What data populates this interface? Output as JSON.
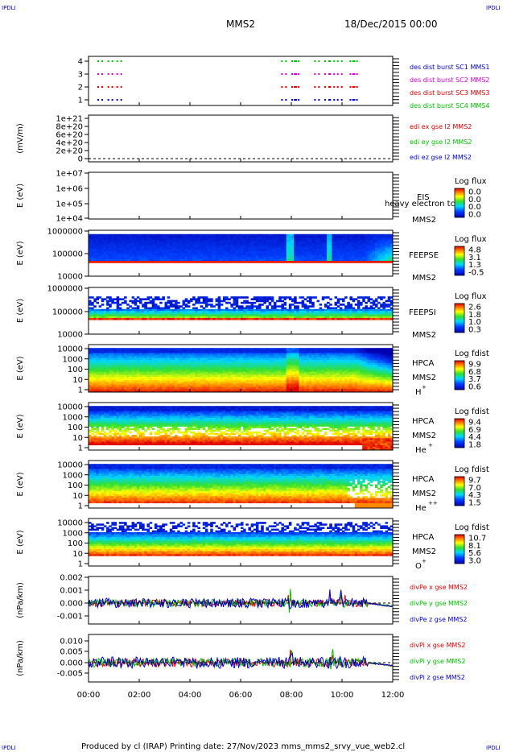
{
  "header": {
    "corner_tl": "IPDLI",
    "corner_tr": "IPDLI",
    "corner_bl": "IPDLI",
    "corner_br": "IPDLI",
    "mission": "MMS2",
    "date": "18/Dec/2015 00:00"
  },
  "footer": {
    "text": "Produced by cl (IRAP)   Printing date: 27/Nov/2023   mms_mms2_srvy_vue_web2.cl"
  },
  "colors": {
    "red": "#e00000",
    "green": "#00c000",
    "blue": "#0000d0",
    "magenta": "#d000d0",
    "text": "#000000"
  },
  "chart_data": [
    {
      "type": "scatter",
      "panel": "burst",
      "yticks": [
        "4",
        "3",
        "2",
        "1"
      ],
      "ylim": [
        0.5,
        4.5
      ],
      "series": [
        {
          "name": "des dist burst SC1 MMS1",
          "color": "#0000d0",
          "y": 1
        },
        {
          "name": "des dist burst SC2 MMS2",
          "color": "#d000d0",
          "y": 3
        },
        {
          "name": "des dist burst SC3 MMS3",
          "color": "#e00000",
          "y": 2
        },
        {
          "name": "des dist burst SC4 MMS4",
          "color": "#00c000",
          "y": 4
        }
      ],
      "burst_times_hours": [
        0.35,
        0.75,
        1.1,
        7.6,
        8.0,
        8.1,
        8.9,
        9.3,
        9.5,
        9.8,
        10.3,
        10.4
      ]
    },
    {
      "type": "line",
      "panel": "edi_e",
      "ylabel": "(mV/m)",
      "yticks": [
        "1e+21",
        "8e+20",
        "6e+20",
        "4e+20",
        "2e+20",
        "0"
      ],
      "ylim": [
        0,
        1e+21
      ],
      "series": [
        {
          "name": "edi ex gse l2 MMS2",
          "color": "#e00000"
        },
        {
          "name": "edi ey gse l2 MMS2",
          "color": "#00c000"
        },
        {
          "name": "edi ez gse l2 MMS2",
          "color": "#0000d0"
        }
      ]
    },
    {
      "type": "heatmap",
      "panel": "eis",
      "ylabel": "E (eV)",
      "yticks": [
        "1e+07",
        "1e+06",
        "1e+05",
        "1e+04"
      ],
      "yscale": "log",
      "labels": [
        "EIS",
        "MMS2"
      ],
      "overlay_text": "heavy electron tc",
      "colorbar": {
        "title": "Log flux",
        "ticks": [
          "0.0",
          "0.0",
          "0.0",
          "0.0"
        ]
      }
    },
    {
      "type": "heatmap",
      "panel": "feepse",
      "ylabel": "E (eV)",
      "yticks": [
        "1000000",
        "100000",
        "10000"
      ],
      "yscale": "log",
      "labels": [
        "FEEPSE",
        "MMS2"
      ],
      "colorbar": {
        "title": "Log flux",
        "ticks": [
          "4.8",
          "3.1",
          "1.3",
          "-0.5"
        ]
      }
    },
    {
      "type": "heatmap",
      "panel": "feepsi",
      "ylabel": "E (eV)",
      "yticks": [
        "1000000",
        "100000",
        "10000"
      ],
      "yscale": "log",
      "labels": [
        "FEEPSI",
        "MMS2"
      ],
      "colorbar": {
        "title": "Log flux",
        "ticks": [
          "2.6",
          "1.8",
          "1.0",
          "0.3"
        ]
      }
    },
    {
      "type": "heatmap",
      "panel": "hpca_h",
      "ylabel": "E (eV)",
      "yticks": [
        "10000",
        "1000",
        "100",
        "10",
        "1"
      ],
      "yscale": "log",
      "labels": [
        "HPCA",
        "MMS2"
      ],
      "species": "H",
      "species_sup": "+",
      "colorbar": {
        "title": "Log fdist",
        "ticks": [
          "9.9",
          "6.8",
          "3.7",
          "0.6"
        ]
      }
    },
    {
      "type": "heatmap",
      "panel": "hpca_he",
      "ylabel": "E (eV)",
      "yticks": [
        "10000",
        "1000",
        "100",
        "10",
        "1"
      ],
      "yscale": "log",
      "labels": [
        "HPCA",
        "MMS2"
      ],
      "species": "He",
      "species_sup": "+",
      "colorbar": {
        "title": "Log fdist",
        "ticks": [
          "9.4",
          "6.9",
          "4.4",
          "1.8"
        ]
      }
    },
    {
      "type": "heatmap",
      "panel": "hpca_hepp",
      "ylabel": "E (eV)",
      "yticks": [
        "10000",
        "1000",
        "100",
        "10",
        "1"
      ],
      "yscale": "log",
      "labels": [
        "HPCA",
        "MMS2"
      ],
      "species": "He",
      "species_sup": "++",
      "colorbar": {
        "title": "Log fdist",
        "ticks": [
          "9.7",
          "7.0",
          "4.3",
          "1.5"
        ]
      }
    },
    {
      "type": "heatmap",
      "panel": "hpca_o",
      "ylabel": "E (eV)",
      "yticks": [
        "10000",
        "1000",
        "100",
        "10",
        "1"
      ],
      "yscale": "log",
      "labels": [
        "HPCA",
        "MMS2"
      ],
      "species": "O",
      "species_sup": "+",
      "colorbar": {
        "title": "Log fdist",
        "ticks": [
          "10.7",
          "8.1",
          "5.6",
          "3.0"
        ]
      }
    },
    {
      "type": "line",
      "panel": "divpe",
      "ylabel": "(nPa/km)",
      "yticks": [
        "0.002",
        "0.001",
        "0.000",
        "-0.001"
      ],
      "ylim": [
        -0.0015,
        0.0022
      ],
      "series": [
        {
          "name": "divPe x gse MMS2",
          "color": "#e00000"
        },
        {
          "name": "divPe y gse MMS2",
          "color": "#00c000"
        },
        {
          "name": "divPe z gse MMS2",
          "color": "#0000d0"
        }
      ]
    },
    {
      "type": "line",
      "panel": "divpi",
      "ylabel": "(nPa/km)",
      "yticks": [
        "0.010",
        "0.005",
        "0.000",
        "-0.005"
      ],
      "ylim": [
        -0.0075,
        0.012
      ],
      "series": [
        {
          "name": "divPi x gse MMS2",
          "color": "#e00000"
        },
        {
          "name": "divPi y gse MMS2",
          "color": "#00c000"
        },
        {
          "name": "divPi z gse MMS2",
          "color": "#0000d0"
        }
      ]
    }
  ],
  "x_axis": {
    "ticks": [
      "00:00",
      "02:00",
      "04:00",
      "06:00",
      "08:00",
      "10:00",
      "12:00"
    ],
    "xlim_hours": [
      0,
      12
    ]
  }
}
